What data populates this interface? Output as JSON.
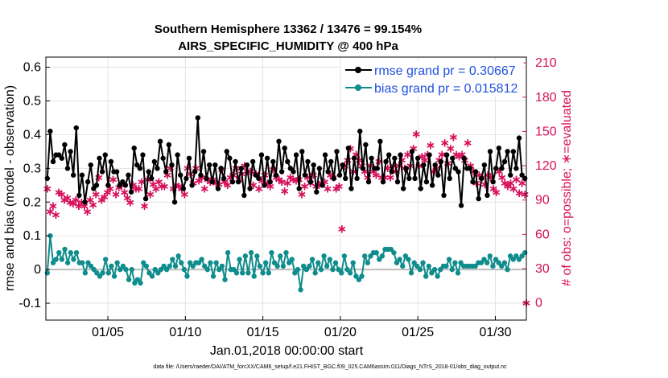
{
  "chart_data": {
    "type": "line",
    "title_line1": "Southern Hemisphere 13362 / 13476 = 99.154%",
    "title_line2": "AIRS_SPECIFIC_HUMIDITY @ 400 hPa",
    "xlabel": "Jan.01,2018 00:00:00 start",
    "ylabel_left": "rmse and bias (model - observation)",
    "ylabel_right": "# of obs: o=possible; ∗=evaluated",
    "footnote": "data file: /Users/raeder/DAI/ATM_forcXX/CAM6_setup/f.e21.FHIST_BGC.f09_025.CAM6assim.011/Diags_NTrS_2018-01/obs_diag_output.nc",
    "x_tick_labels": [
      "01/05",
      "01/10",
      "01/15",
      "01/20",
      "01/25",
      "01/30"
    ],
    "x_tick_days": [
      5,
      10,
      15,
      20,
      25,
      30
    ],
    "xlim": [
      1,
      32
    ],
    "y_left_ticks": [
      "-0.1",
      "0",
      "0.1",
      "0.2",
      "0.3",
      "0.4",
      "0.5",
      "0.6"
    ],
    "ylim_left": [
      -0.15,
      0.63
    ],
    "y_right_ticks": [
      "0",
      "30",
      "60",
      "90",
      "120",
      "150",
      "180",
      "210"
    ],
    "ylim_right": [
      -15,
      215
    ],
    "grid": true,
    "legend_position": "top-right",
    "colors": {
      "rmse": "#000000",
      "bias": "#0f8c8c",
      "obs": "#d6105b",
      "zero_line": "#bdbdbd",
      "grid": "#e3e3e3"
    },
    "series": [
      {
        "name": "rmse grand pr = 0.30667",
        "axis": "left",
        "values": [
          0.27,
          0.41,
          0.32,
          0.34,
          0.34,
          0.33,
          0.37,
          0.3,
          0.35,
          0.28,
          0.42,
          0.22,
          0.28,
          0.2,
          0.26,
          0.31,
          0.24,
          0.25,
          0.33,
          0.29,
          0.34,
          0.25,
          0.32,
          0.29,
          0.29,
          0.25,
          0.26,
          0.25,
          0.28,
          0.23,
          0.36,
          0.31,
          0.3,
          0.34,
          0.21,
          0.29,
          0.27,
          0.32,
          0.3,
          0.38,
          0.33,
          0.29,
          0.37,
          0.31,
          0.2,
          0.34,
          0.28,
          0.24,
          0.27,
          0.33,
          0.25,
          0.29,
          0.45,
          0.28,
          0.35,
          0.27,
          0.31,
          0.26,
          0.31,
          0.24,
          0.3,
          0.27,
          0.35,
          0.33,
          0.26,
          0.32,
          0.26,
          0.3,
          0.22,
          0.31,
          0.24,
          0.32,
          0.28,
          0.27,
          0.34,
          0.25,
          0.33,
          0.26,
          0.32,
          0.28,
          0.38,
          0.29,
          0.36,
          0.32,
          0.3,
          0.29,
          0.34,
          0.24,
          0.35,
          0.28,
          0.32,
          0.26,
          0.31,
          0.23,
          0.3,
          0.25,
          0.34,
          0.29,
          0.32,
          0.27,
          0.35,
          0.28,
          0.31,
          0.27,
          0.36,
          0.24,
          0.33,
          0.27,
          0.41,
          0.3,
          0.37,
          0.26,
          0.33,
          0.3,
          0.3,
          0.38,
          0.26,
          0.32,
          0.34,
          0.29,
          0.33,
          0.26,
          0.34,
          0.24,
          0.3,
          0.27,
          0.35,
          0.27,
          0.33,
          0.24,
          0.31,
          0.26,
          0.34,
          0.25,
          0.31,
          0.28,
          0.32,
          0.22,
          0.34,
          0.27,
          0.33,
          0.3,
          0.29,
          0.19,
          0.33,
          0.3,
          0.3,
          0.26,
          0.29,
          0.21,
          0.27,
          0.31,
          0.22,
          0.35,
          0.26,
          0.3,
          0.36,
          0.3,
          0.32,
          0.35,
          0.28,
          0.35,
          0.3,
          0.39,
          0.28,
          0.27
        ],
        "marker": "filled-circle"
      },
      {
        "name": "bias grand pr = 0.015812",
        "axis": "left",
        "values": [
          -0.01,
          0.1,
          0.02,
          0.03,
          0.05,
          0.03,
          0.06,
          0.02,
          0.05,
          0.03,
          0.05,
          0.02,
          0.02,
          -0.01,
          0.02,
          0.01,
          0.0,
          -0.01,
          -0.02,
          -0.01,
          0.03,
          -0.01,
          0.01,
          -0.02,
          0.02,
          0.0,
          0.01,
          0.0,
          -0.03,
          0.0,
          -0.04,
          -0.03,
          -0.04,
          0.02,
          0.01,
          -0.01,
          -0.02,
          0.0,
          -0.01,
          0.0,
          0.01,
          0.0,
          0.01,
          0.03,
          0.01,
          0.04,
          0.02,
          0.0,
          -0.02,
          0.02,
          0.01,
          0.02,
          0.02,
          0.03,
          0.01,
          0.0,
          0.02,
          -0.02,
          0.02,
          0.0,
          0.01,
          -0.03,
          0.05,
          0.0,
          0.0,
          -0.01,
          0.03,
          -0.01,
          0.04,
          -0.01,
          0.05,
          -0.02,
          0.04,
          0.01,
          -0.01,
          0.02,
          -0.01,
          0.05,
          0.02,
          0.01,
          0.04,
          0.01,
          0.05,
          0.02,
          0.03,
          -0.01,
          0.0,
          -0.06,
          0.01,
          0.0,
          0.01,
          0.03,
          -0.01,
          0.02,
          0.0,
          0.04,
          0.01,
          0.03,
          0.0,
          0.02,
          0.0,
          -0.01,
          0.04,
          0.0,
          -0.01,
          0.02,
          -0.02,
          -0.03,
          -0.02,
          0.04,
          0.02,
          0.04,
          0.05,
          0.05,
          0.03,
          0.04,
          0.06,
          0.06,
          0.06,
          0.05,
          0.02,
          0.03,
          0.01,
          0.04,
          0.03,
          -0.01,
          0.02,
          0.01,
          0.0,
          0.02,
          -0.02,
          0.01,
          -0.01,
          0.0,
          -0.02,
          0.0,
          0.01,
          0.01,
          0.03,
          0.0,
          0.02,
          -0.01,
          0.02,
          0.01,
          0.01,
          0.01,
          0.01,
          0.01,
          0.02,
          0.02,
          0.03,
          0.02,
          0.04,
          0.01,
          0.03,
          0.02,
          0.01,
          0.02,
          0.0,
          0.04,
          0.03,
          0.04,
          0.03,
          0.04,
          0.05
        ],
        "marker": "filled-circle"
      },
      {
        "name": "# of obs evaluated",
        "axis": "right",
        "values": [
          100,
          80,
          85,
          77,
          97,
          95,
          90,
          92,
          88,
          87,
          90,
          85,
          88,
          85,
          80,
          90,
          86,
          95,
          110,
          90,
          93,
          97,
          100,
          108,
          95,
          101,
          103,
          97,
          92,
          88,
          103,
          100,
          100,
          106,
          85,
          108,
          95,
          104,
          100,
          106,
          102,
          102,
          112,
          118,
          100,
          103,
          102,
          100,
          95,
          118,
          113,
          105,
          118,
          107,
          110,
          100,
          108,
          106,
          108,
          105,
          104,
          117,
          106,
          103,
          110,
          112,
          118,
          108,
          113,
          120,
          115,
          115,
          103,
          113,
          100,
          107,
          112,
          105,
          102,
          117,
          110,
          108,
          106,
          98,
          105,
          110,
          108,
          107,
          108,
          95,
          102,
          110,
          105,
          112,
          102,
          103,
          105,
          106,
          100,
          112,
          110,
          100,
          102,
          65,
          120,
          125,
          135,
          115,
          130,
          125,
          120,
          115,
          110,
          120,
          115,
          112,
          124,
          110,
          110,
          118,
          110,
          120,
          115,
          120,
          125,
          118,
          130,
          120,
          135,
          148,
          120,
          128,
          125,
          130,
          138,
          115,
          118,
          125,
          130,
          140,
          122,
          135,
          145,
          130,
          128,
          130,
          125,
          140,
          120,
          115,
          105,
          112,
          110,
          104,
          112,
          110,
          100,
          97,
          115,
          110,
          105,
          102,
          105,
          100,
          108,
          96,
          105,
          95
        ],
        "marker": "asterisk"
      }
    ],
    "obs_possible_value": 0
  }
}
